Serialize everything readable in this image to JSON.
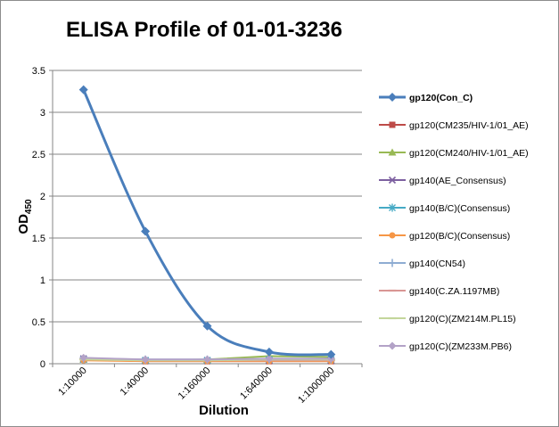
{
  "chart_data": {
    "type": "line",
    "title": "ELISA Profile of 01-01-3236",
    "xlabel": "Dilution",
    "ylabel": "OD",
    "ylabel_subscript": "450",
    "categories": [
      "1:10000",
      "1:40000",
      "1:160000",
      "1:640000",
      "1:1000000"
    ],
    "yticks": [
      "0",
      "0.5",
      "1",
      "1.5",
      "2",
      "2.5",
      "3",
      "3.5"
    ],
    "ylim": [
      0,
      3.5
    ],
    "grid": "horizontal",
    "legend_position": "right",
    "series": [
      {
        "name": "gp120(Con_C)",
        "values": [
          3.27,
          1.58,
          0.45,
          0.14,
          0.11
        ],
        "color": "#4a7ebb",
        "marker": "diamond",
        "smooth": true,
        "bold": true
      },
      {
        "name": "gp120(CM235/HIV-1/01_AE)",
        "values": [
          0.05,
          0.03,
          0.03,
          0.03,
          0.03
        ],
        "color": "#be4b48",
        "marker": "square"
      },
      {
        "name": "gp120(CM240/HIV-1/01_AE)",
        "values": [
          0.05,
          0.04,
          0.05,
          0.09,
          0.08
        ],
        "color": "#98b954",
        "marker": "triangle"
      },
      {
        "name": "gp140(AE_Consensus)",
        "values": [
          0.06,
          0.04,
          0.04,
          0.04,
          0.04
        ],
        "color": "#7d60a0",
        "marker": "x"
      },
      {
        "name": "gp140(B/C)(Consensus)",
        "values": [
          0.05,
          0.04,
          0.04,
          0.05,
          0.05
        ],
        "color": "#46aac5",
        "marker": "star"
      },
      {
        "name": "gp120(B/C)(Consensus)",
        "values": [
          0.04,
          0.03,
          0.03,
          0.03,
          0.03
        ],
        "color": "#f69646",
        "marker": "circle"
      },
      {
        "name": "gp140(CN54)",
        "values": [
          0.06,
          0.05,
          0.05,
          0.05,
          0.05
        ],
        "color": "#8eacd2",
        "marker": "plus"
      },
      {
        "name": "gp140(C.ZA.1197MB)",
        "values": [
          0.05,
          0.04,
          0.04,
          0.04,
          0.04
        ],
        "color": "#d99694",
        "marker": "dash"
      },
      {
        "name": "gp120(C)(ZM214M.PL15)",
        "values": [
          0.05,
          0.04,
          0.04,
          0.05,
          0.05
        ],
        "color": "#c3d69b",
        "marker": "dash"
      },
      {
        "name": "gp120(C)(ZM233M.PB6)",
        "values": [
          0.07,
          0.05,
          0.05,
          0.06,
          0.06
        ],
        "color": "#b3a2c7",
        "marker": "diamond"
      }
    ]
  }
}
